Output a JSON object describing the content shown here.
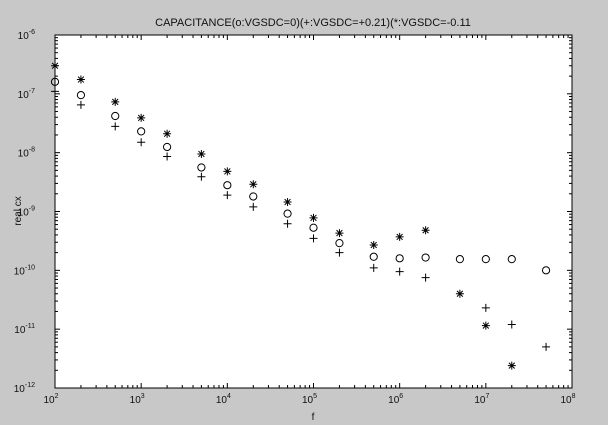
{
  "chart_data": {
    "type": "scatter",
    "title": "CAPACITANCE(o:VGSDC=0)(+:VGSDC=+0.21)(*:VGSDC=-0.11",
    "xlabel": "f",
    "ylabel": "real cx",
    "xscale": "log",
    "yscale": "log",
    "xlim": [
      100,
      100000000
    ],
    "ylim": [
      1e-12,
      1e-06
    ],
    "grid": false,
    "x_ticks": [
      {
        "value": 100,
        "base": "10",
        "exp": "2"
      },
      {
        "value": 1000,
        "base": "10",
        "exp": "3"
      },
      {
        "value": 10000,
        "base": "10",
        "exp": "4"
      },
      {
        "value": 100000,
        "base": "10",
        "exp": "5"
      },
      {
        "value": 1000000,
        "base": "10",
        "exp": "6"
      },
      {
        "value": 10000000,
        "base": "10",
        "exp": "7"
      },
      {
        "value": 100000000,
        "base": "10",
        "exp": "8"
      }
    ],
    "y_ticks": [
      {
        "value": 1e-12,
        "base": "10",
        "exp": "-12"
      },
      {
        "value": 1e-11,
        "base": "10",
        "exp": "-11"
      },
      {
        "value": 1e-10,
        "base": "10",
        "exp": "-10"
      },
      {
        "value": 1e-09,
        "base": "10",
        "exp": "-9"
      },
      {
        "value": 1e-08,
        "base": "10",
        "exp": "-8"
      },
      {
        "value": 1e-07,
        "base": "10",
        "exp": "-7"
      },
      {
        "value": 1e-06,
        "base": "10",
        "exp": "-6"
      }
    ],
    "series": [
      {
        "marker": "o",
        "color": "#000000",
        "points": [
          [
            100,
            1.6e-07
          ],
          [
            200,
            9.5e-08
          ],
          [
            500,
            4.2e-08
          ],
          [
            1000,
            2.3e-08
          ],
          [
            2000,
            1.25e-08
          ],
          [
            5000,
            5.6e-09
          ],
          [
            10000,
            2.8e-09
          ],
          [
            20000,
            1.8e-09
          ],
          [
            50000,
            9.2e-10
          ],
          [
            100000,
            5.3e-10
          ],
          [
            200000,
            2.9e-10
          ],
          [
            500000,
            1.7e-10
          ],
          [
            1000000,
            1.6e-10
          ],
          [
            2000000,
            1.65e-10
          ],
          [
            5000000,
            1.55e-10
          ],
          [
            10000000,
            1.55e-10
          ],
          [
            20000000,
            1.55e-10
          ],
          [
            50000000,
            1e-10
          ]
        ]
      },
      {
        "marker": "+",
        "color": "#000000",
        "points": [
          [
            100,
            1.1e-07
          ],
          [
            200,
            6.5e-08
          ],
          [
            500,
            2.8e-08
          ],
          [
            1000,
            1.5e-08
          ],
          [
            2000,
            8.6e-09
          ],
          [
            5000,
            3.9e-09
          ],
          [
            10000,
            1.9e-09
          ],
          [
            20000,
            1.2e-09
          ],
          [
            50000,
            6.2e-10
          ],
          [
            100000,
            3.5e-10
          ],
          [
            200000,
            2e-10
          ],
          [
            500000,
            1.1e-10
          ],
          [
            1000000,
            9.5e-11
          ],
          [
            2000000,
            7.5e-11
          ],
          [
            10000000,
            2.3e-11
          ],
          [
            20000000,
            1.2e-11
          ],
          [
            50000000,
            5e-12
          ]
        ]
      },
      {
        "marker": "*",
        "color": "#000000",
        "points": [
          [
            100,
            3e-07
          ],
          [
            200,
            1.75e-07
          ],
          [
            500,
            7.3e-08
          ],
          [
            1000,
            3.9e-08
          ],
          [
            2000,
            2.1e-08
          ],
          [
            5000,
            9.5e-09
          ],
          [
            10000,
            4.8e-09
          ],
          [
            20000,
            2.9e-09
          ],
          [
            50000,
            1.45e-09
          ],
          [
            100000,
            7.8e-10
          ],
          [
            200000,
            4.3e-10
          ],
          [
            500000,
            2.7e-10
          ],
          [
            1000000,
            3.7e-10
          ],
          [
            2000000,
            4.8e-10
          ],
          [
            5000000,
            4e-11
          ],
          [
            10000000,
            1.15e-11
          ],
          [
            20000000,
            2.4e-12
          ]
        ]
      }
    ]
  }
}
